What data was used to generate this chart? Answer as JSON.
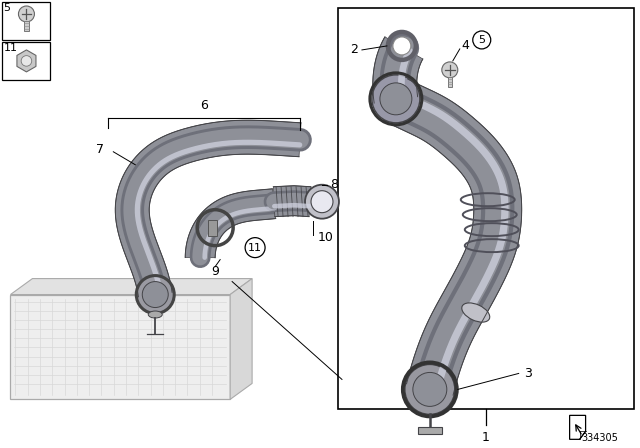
{
  "background_color": "#ffffff",
  "part_number": "334305",
  "pipe_color_dark": "#6e707a",
  "pipe_color_mid": "#8e9098",
  "pipe_color_light": "#b8bac8",
  "pipe_color_highlight": "#d0d2e0",
  "outline_color": "#444448"
}
